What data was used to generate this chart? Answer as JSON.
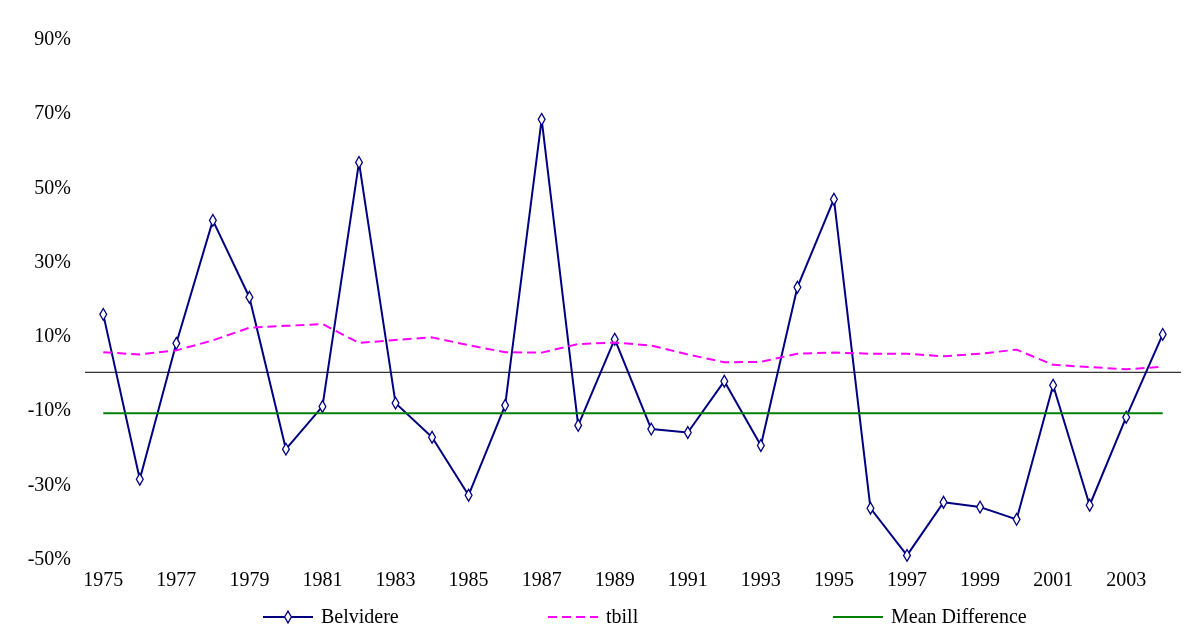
{
  "chart_data": {
    "type": "line",
    "categories": [
      "1975",
      null,
      "1977",
      null,
      "1979",
      null,
      "1981",
      null,
      "1983",
      null,
      "1985",
      null,
      "1987",
      null,
      "1989",
      null,
      "1991",
      null,
      "1993",
      null,
      "1995",
      null,
      "1997",
      null,
      "1999",
      null,
      "2001",
      null,
      "2003",
      null
    ],
    "series": [
      {
        "name": "Belvidere",
        "color": "#000080",
        "marker": "diamond",
        "line_style": "solid",
        "values": [
          15.6,
          -28.8,
          7.8,
          40.9,
          20.2,
          -20.7,
          -9.2,
          56.5,
          -8.3,
          -17.5,
          -33.1,
          -8.9,
          68.1,
          -14.3,
          8.9,
          -15.3,
          -16.2,
          -2.4,
          -19.7,
          22.9,
          46.6,
          -36.6,
          -49.3,
          -35,
          -36.3,
          -39.6,
          -3.5,
          -35.8,
          -12.1,
          10.2
        ]
      },
      {
        "name": "tbill",
        "color": "#ff00ff",
        "marker": "none",
        "line_style": "dashed",
        "values": [
          5.4,
          4.8,
          5.9,
          8.6,
          12,
          12.5,
          13,
          7.9,
          8.7,
          9.4,
          7.3,
          5.4,
          5.3,
          7.6,
          8,
          7.2,
          4.8,
          2.7,
          2.8,
          5,
          5.3,
          5,
          5,
          4.3,
          5,
          6.1,
          2,
          1.4,
          0.8,
          1.5
        ]
      },
      {
        "name": "Mean Difference",
        "color": "#008000",
        "marker": "none",
        "line_style": "solid",
        "values": [
          -11,
          -11,
          -11,
          -11,
          -11,
          -11,
          -11,
          -11,
          -11,
          -11,
          -11,
          -11,
          -11,
          -11,
          -11,
          -11,
          -11,
          -11,
          -11,
          -11,
          -11,
          -11,
          -11,
          -11,
          -11,
          -11,
          -11,
          -11,
          -11,
          -11
        ]
      }
    ],
    "ylim": [
      -50,
      90
    ],
    "yticks": [
      {
        "value": -50,
        "label": "-50%"
      },
      {
        "value": -30,
        "label": "-30%"
      },
      {
        "value": -10,
        "label": "-10%"
      },
      {
        "value": 10,
        "label": "10%"
      },
      {
        "value": 30,
        "label": "30%"
      },
      {
        "value": 50,
        "label": "50%"
      },
      {
        "value": 70,
        "label": "70%"
      },
      {
        "value": 90,
        "label": "90%"
      }
    ],
    "legend": "bottom",
    "grid": false
  }
}
